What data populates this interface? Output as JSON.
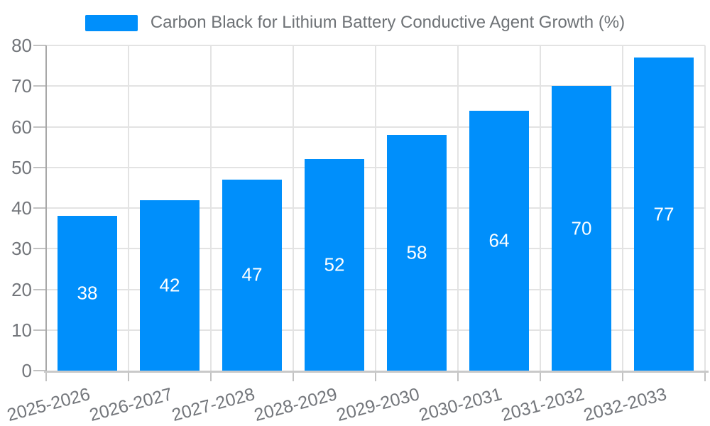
{
  "legend": {
    "label": "Carbon Black for Lithium Battery Conductive Agent Growth (%)"
  },
  "colors": {
    "bar": "#008FFB",
    "grid": "#e3e3e3",
    "axis_y": "#a8a8a8",
    "axis_x": "#c9c9c9",
    "tick": "#c2c2c2",
    "tick_text": "#73767b",
    "title_text": "#6e7276",
    "value_label": "#ffffff"
  },
  "chart_data": {
    "type": "bar",
    "title": "Carbon Black for Lithium Battery Conductive Agent Growth (%)",
    "categories": [
      "2025-2026",
      "2026-2027",
      "2027-2028",
      "2028-2029",
      "2029-2030",
      "2030-2031",
      "2031-2032",
      "2032-2033"
    ],
    "values": [
      38,
      42,
      47,
      52,
      58,
      64,
      70,
      77
    ],
    "series_name": "Carbon Black for Lithium Battery Conductive Agent Growth (%)",
    "xlabel": "",
    "ylabel": "",
    "ylim": [
      0,
      80
    ],
    "yticks": [
      0,
      10,
      20,
      30,
      40,
      50,
      60,
      70,
      80
    ],
    "grid": true,
    "legend_position": "top",
    "data_labels": "inside-center"
  }
}
